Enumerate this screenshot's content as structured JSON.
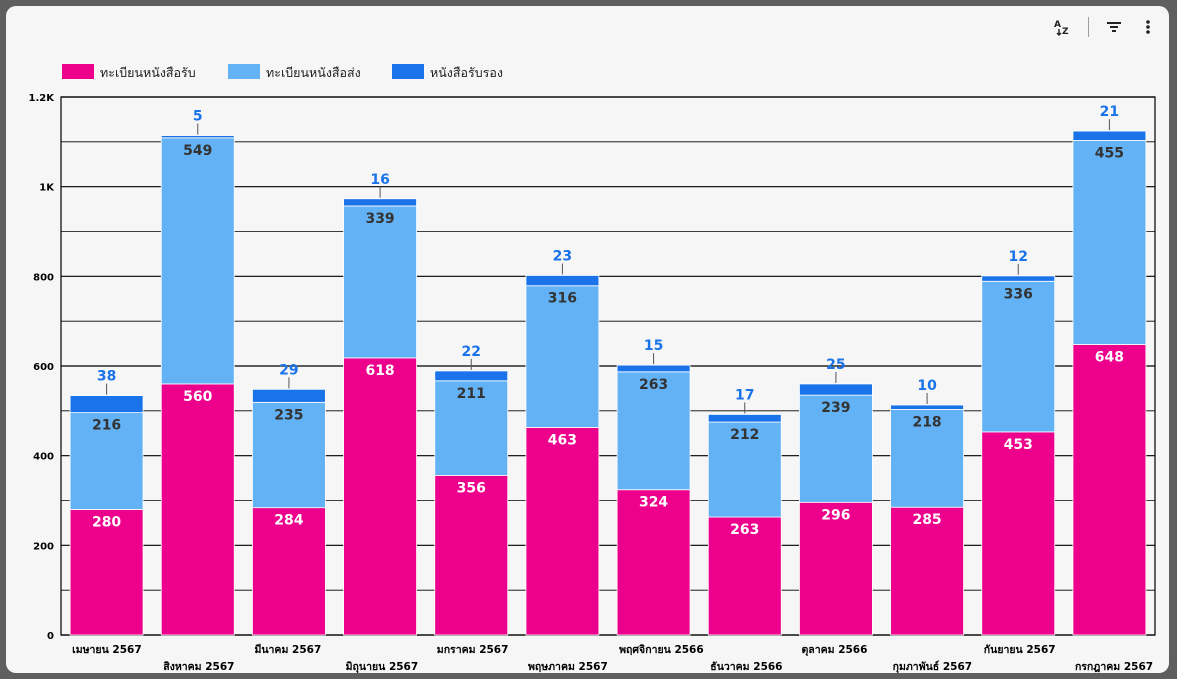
{
  "toolbar": {
    "icons": [
      "sort-az-icon",
      "filter-icon",
      "more-vert-icon"
    ]
  },
  "colors": {
    "series": [
      "#ec008c",
      "#63b2f5",
      "#1a73e8"
    ],
    "label_dark": "#ffffff",
    "label_mid": "#333333",
    "label_top": "#1a73e8",
    "axis": "#000000",
    "grid": "#000000"
  },
  "chart_data": {
    "type": "bar",
    "stacked": true,
    "title": "",
    "xlabel": "",
    "ylabel": "",
    "ylim": [
      0,
      1200
    ],
    "yticks": [
      0,
      200,
      400,
      600,
      800,
      1000,
      1200
    ],
    "ytick_labels": [
      "0",
      "200",
      "400",
      "600",
      "800",
      "1K",
      "1.2K"
    ],
    "grid": true,
    "legend_position": "top-left",
    "categories": [
      "เมษายน 2567",
      "สิงหาคม 2567",
      "มีนาคม 2567",
      "มิถุนายน 2567",
      "มกราคม 2567",
      "พฤษภาคม 2567",
      "พฤศจิกายน 2566",
      "ธันวาคม 2566",
      "ตุลาคม 2566",
      "กุมภาพันธ์ 2567",
      "กันยายน 2567",
      "กรกฎาคม 2567"
    ],
    "series": [
      {
        "name": "ทะเบียนหนังสือรับ",
        "values": [
          280,
          560,
          284,
          618,
          356,
          463,
          324,
          263,
          296,
          285,
          453,
          648
        ]
      },
      {
        "name": "ทะเบียนหนังสือส่ง",
        "values": [
          216,
          549,
          235,
          339,
          211,
          316,
          263,
          212,
          239,
          218,
          336,
          455
        ]
      },
      {
        "name": "หนังสือรับรอง",
        "values": [
          38,
          5,
          29,
          16,
          22,
          23,
          15,
          17,
          25,
          10,
          12,
          21
        ]
      }
    ]
  }
}
